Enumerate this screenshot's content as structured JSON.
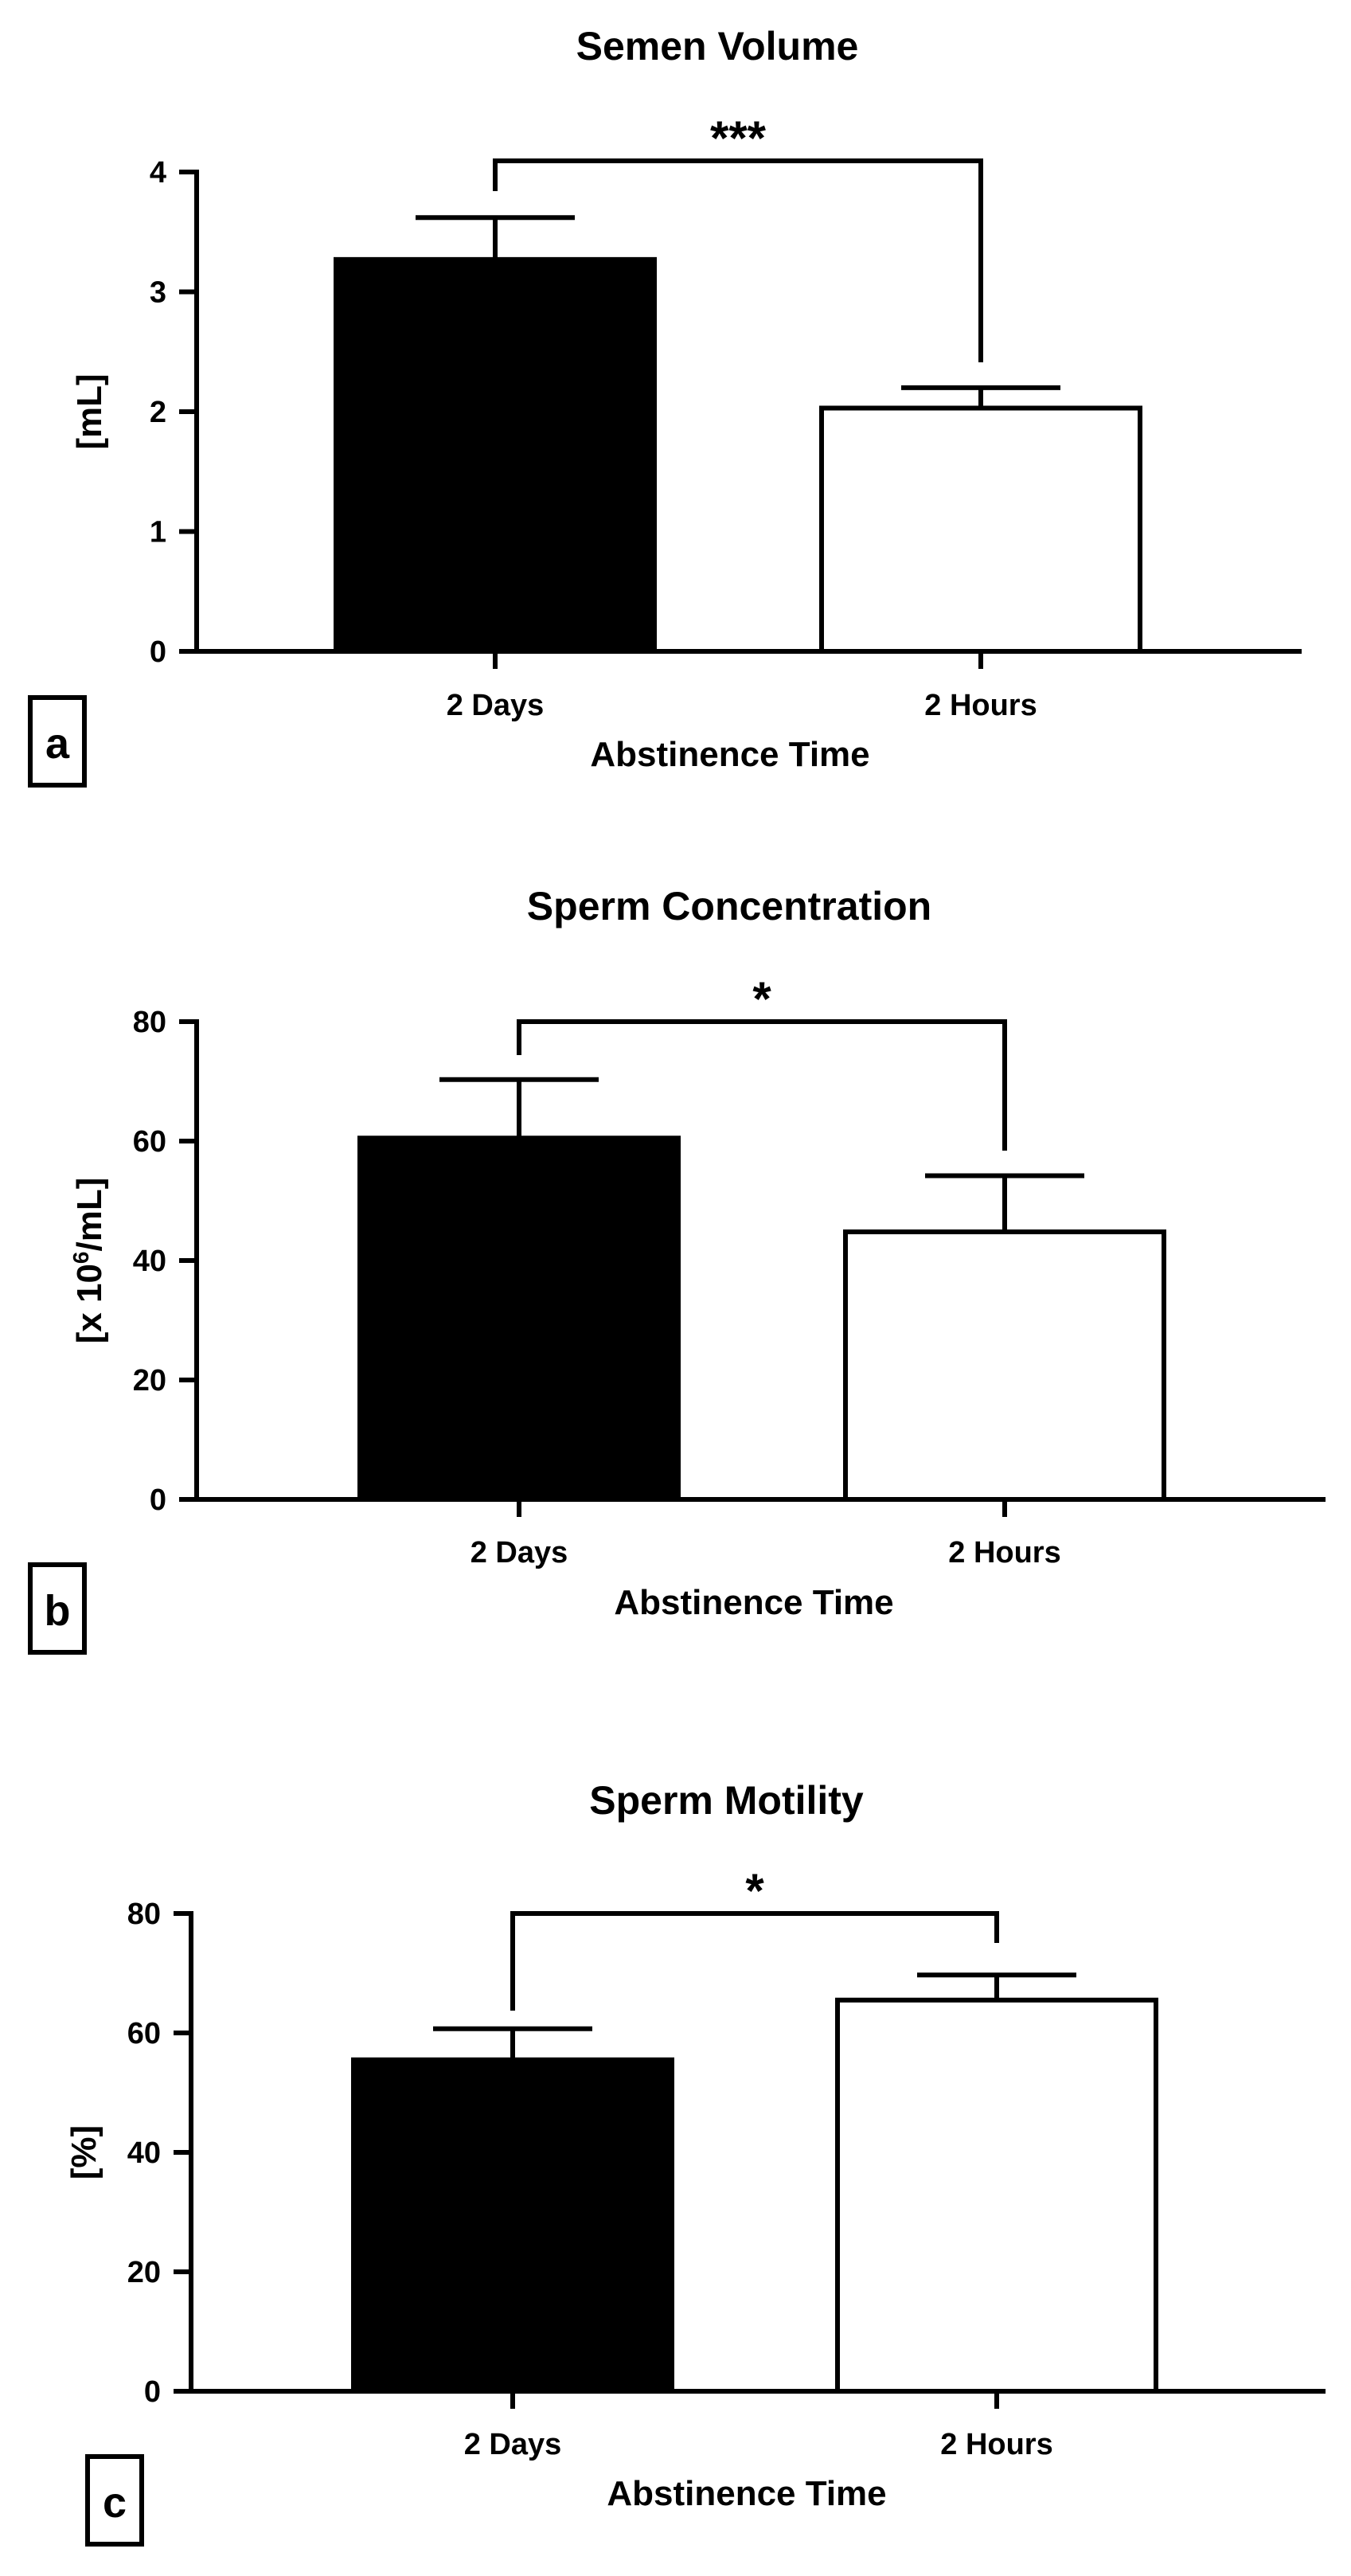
{
  "chart_data": [
    {
      "type": "bar",
      "panel": "a",
      "title": "Semen Volume",
      "xlabel": "Abstinence Time",
      "ylabel": "[mL]",
      "categories": [
        "2 Days",
        "2 Hours"
      ],
      "values": [
        3.27,
        2.03
      ],
      "errors": [
        0.35,
        0.17
      ],
      "colors": [
        "#000000",
        "#ffffff"
      ],
      "ylim": [
        0,
        4
      ],
      "yticks": [
        0,
        1,
        2,
        3,
        4
      ],
      "significance": "***"
    },
    {
      "type": "bar",
      "panel": "b",
      "title": "Sperm Concentration",
      "xlabel": "Abstinence Time",
      "ylabel": "[x 10",
      "ylabel_sup": "6",
      "ylabel_tail": "/mL]",
      "categories": [
        "2 Days",
        "2 Hours"
      ],
      "values": [
        60.5,
        44.8
      ],
      "errors": [
        9.8,
        9.4
      ],
      "colors": [
        "#000000",
        "#ffffff"
      ],
      "ylim": [
        0,
        80
      ],
      "yticks": [
        0,
        20,
        40,
        60,
        80
      ],
      "significance": "*"
    },
    {
      "type": "bar",
      "panel": "c",
      "title": "Sperm Motility",
      "xlabel": "Abstinence Time",
      "ylabel": "[%]",
      "categories": [
        "2 Days",
        "2 Hours"
      ],
      "values": [
        55.5,
        65.5
      ],
      "errors": [
        5.2,
        4.2
      ],
      "colors": [
        "#000000",
        "#ffffff"
      ],
      "ylim": [
        0,
        80
      ],
      "yticks": [
        0,
        20,
        40,
        60,
        80
      ],
      "significance": "*"
    }
  ]
}
